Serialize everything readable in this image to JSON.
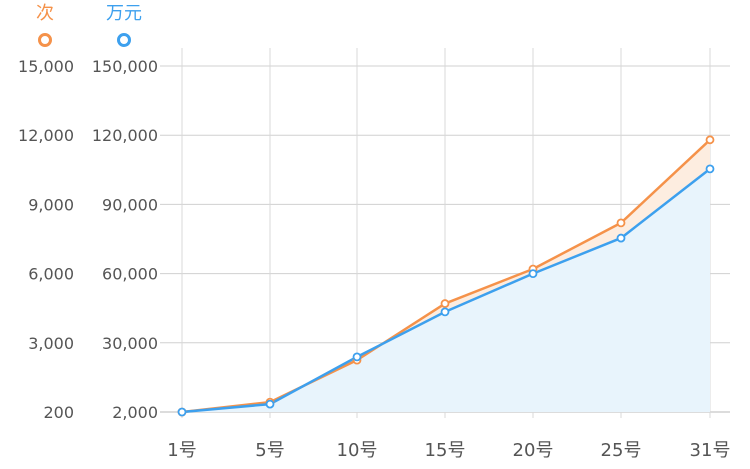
{
  "chart_data": {
    "type": "area",
    "categories": [
      "1号",
      "5号",
      "10号",
      "15号",
      "20号",
      "25号",
      "31号"
    ],
    "series": [
      {
        "name": "次",
        "color": "#F5924A",
        "fill": "#FDEDE0",
        "axis": "left",
        "values": [
          200,
          600,
          2300,
          4700,
          6200,
          8200,
          11800
        ]
      },
      {
        "name": "万元",
        "color": "#3DA0EE",
        "fill": "#E8F4FC",
        "axis": "right",
        "values": [
          2000,
          5200,
          24300,
          43400,
          60000,
          75400,
          105400
        ]
      }
    ],
    "left_axis": {
      "ticks": [
        200,
        3000,
        6000,
        9000,
        12000,
        15000
      ],
      "tick_labels": [
        "200",
        "3,000",
        "6,000",
        "9,000",
        "12,000",
        "15,000"
      ]
    },
    "right_axis": {
      "ticks": [
        2000,
        30000,
        60000,
        90000,
        120000,
        150000
      ],
      "tick_labels": [
        "2,000",
        "30,000",
        "60,000",
        "90,000",
        "120,000",
        "150,000"
      ]
    },
    "legend_position": "top-left",
    "grid": true
  }
}
